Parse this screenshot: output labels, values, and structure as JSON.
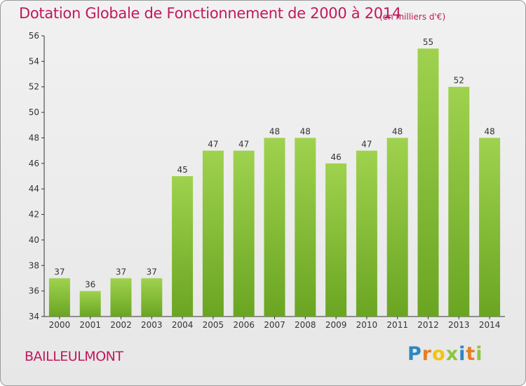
{
  "chart_data": {
    "type": "bar",
    "title": "Dotation Globale de Fonctionnement de 2000 à 2014",
    "subtitle": "(en milliers d'€)",
    "categories": [
      "2000",
      "2001",
      "2002",
      "2003",
      "2004",
      "2005",
      "2006",
      "2007",
      "2008",
      "2009",
      "2010",
      "2011",
      "2012",
      "2013",
      "2014"
    ],
    "values": [
      37,
      36,
      37,
      37,
      45,
      47,
      47,
      48,
      48,
      46,
      47,
      48,
      55,
      52,
      48
    ],
    "ylim": [
      34,
      56
    ],
    "yticks": [
      34,
      36,
      38,
      40,
      42,
      44,
      46,
      48,
      50,
      52,
      54,
      56
    ],
    "grid": false,
    "bar_color": "#8cc63f"
  },
  "footer": {
    "place": "BAILLEULMONT",
    "logo_letters": [
      {
        "ch": "P",
        "color": "#2e86c1"
      },
      {
        "ch": "r",
        "color": "#e67e22"
      },
      {
        "ch": "o",
        "color": "#f1c40f"
      },
      {
        "ch": "x",
        "color": "#8cc63f"
      },
      {
        "ch": "i",
        "color": "#2e86c1"
      },
      {
        "ch": "t",
        "color": "#e67e22"
      },
      {
        "ch": "i",
        "color": "#8cc63f"
      }
    ]
  },
  "colors": {
    "title": "#c2185b",
    "axis": "#333333",
    "label": "#333333"
  }
}
